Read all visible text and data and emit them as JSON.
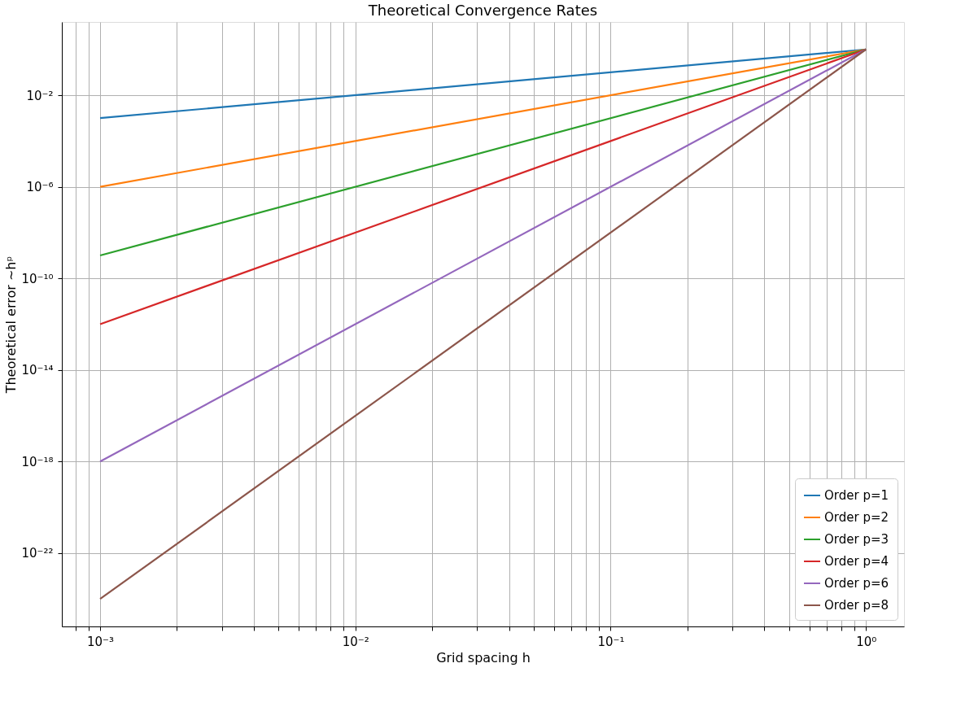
{
  "chart_data": {
    "type": "line",
    "title": "Theoretical Convergence Rates",
    "xlabel": "Grid spacing h",
    "ylabel": "Theoretical error ∼hᵖ",
    "log": "xy",
    "grid": true,
    "legend": "bottom right",
    "marker": "none",
    "line_style": "solid",
    "x": [
      0.001,
      1
    ],
    "series": [
      {
        "name": "Order p=1",
        "color": "#1f77b4",
        "values": [
          0.001,
          1
        ]
      },
      {
        "name": "Order p=2",
        "color": "#ff7f0e",
        "values": [
          1e-06,
          1
        ]
      },
      {
        "name": "Order p=3",
        "color": "#2ca02c",
        "values": [
          1e-09,
          1
        ]
      },
      {
        "name": "Order p=4",
        "color": "#d62728",
        "values": [
          1e-12,
          1
        ]
      },
      {
        "name": "Order p=6",
        "color": "#9467bd",
        "values": [
          1e-18,
          1
        ]
      },
      {
        "name": "Order p=8",
        "color": "#8c564b",
        "values": [
          1e-24,
          1
        ]
      }
    ],
    "xlim": [
      0.000708,
      1.41
    ],
    "ylim": [
      6.3e-26,
      15.8
    ],
    "xticks": [
      {
        "value": 0.0008,
        "label": null
      },
      {
        "value": 0.0009,
        "label": null
      },
      {
        "value": 0.001,
        "label": "10⁻³"
      },
      {
        "value": 0.002,
        "label": null
      },
      {
        "value": 0.003,
        "label": null
      },
      {
        "value": 0.004,
        "label": null
      },
      {
        "value": 0.005,
        "label": null
      },
      {
        "value": 0.006,
        "label": null
      },
      {
        "value": 0.007,
        "label": null
      },
      {
        "value": 0.008,
        "label": null
      },
      {
        "value": 0.009,
        "label": null
      },
      {
        "value": 0.01,
        "label": "10⁻²"
      },
      {
        "value": 0.02,
        "label": null
      },
      {
        "value": 0.03,
        "label": null
      },
      {
        "value": 0.04,
        "label": null
      },
      {
        "value": 0.05,
        "label": null
      },
      {
        "value": 0.06,
        "label": null
      },
      {
        "value": 0.07,
        "label": null
      },
      {
        "value": 0.08,
        "label": null
      },
      {
        "value": 0.09,
        "label": null
      },
      {
        "value": 0.1,
        "label": "10⁻¹"
      },
      {
        "value": 0.2,
        "label": null
      },
      {
        "value": 0.3,
        "label": null
      },
      {
        "value": 0.4,
        "label": null
      },
      {
        "value": 0.5,
        "label": null
      },
      {
        "value": 0.6,
        "label": null
      },
      {
        "value": 0.7,
        "label": null
      },
      {
        "value": 0.8,
        "label": null
      },
      {
        "value": 0.9,
        "label": null
      },
      {
        "value": 1,
        "label": "10⁰"
      }
    ],
    "yticks": [
      {
        "value": 1e-22,
        "label": "10⁻²²"
      },
      {
        "value": 1e-18,
        "label": "10⁻¹⁸"
      },
      {
        "value": 1e-14,
        "label": "10⁻¹⁴"
      },
      {
        "value": 1e-10,
        "label": "10⁻¹⁰"
      },
      {
        "value": 1e-06,
        "label": "10⁻⁶"
      },
      {
        "value": 0.01,
        "label": "10⁻²"
      }
    ]
  }
}
